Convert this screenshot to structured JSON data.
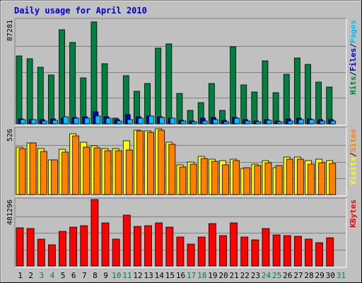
{
  "chart_data": {
    "type": "bar",
    "title": "Daily usage for April 2010",
    "categories": [
      "1",
      "2",
      "3",
      "4",
      "5",
      "6",
      "7",
      "8",
      "9",
      "10",
      "11",
      "12",
      "13",
      "14",
      "15",
      "16",
      "17",
      "18",
      "19",
      "20",
      "21",
      "22",
      "23",
      "24",
      "25",
      "26",
      "27",
      "28",
      "29",
      "30",
      "31"
    ],
    "weekend_days": [
      "3",
      "4",
      "10",
      "11",
      "17",
      "18",
      "24",
      "25",
      "31"
    ],
    "panels": [
      {
        "id": "hits",
        "max_label": "87281",
        "ymax": 87281,
        "legend": [
          {
            "text": "Hits",
            "color": "#008040"
          },
          {
            "text": "/",
            "color": "#000000"
          },
          {
            "text": "Files",
            "color": "#0000c0"
          },
          {
            "text": "/",
            "color": "#000000"
          },
          {
            "text": "Pages",
            "color": "#00c0ff"
          }
        ],
        "series": [
          {
            "name": "Hits",
            "color": "#008040",
            "values": [
              57200,
              54500,
              47500,
              40800,
              79000,
              68500,
              38800,
              85600,
              50700,
              4500,
              40300,
              27100,
              33800,
              63800,
              67200,
              25700,
              11000,
              18100,
              33800,
              11300,
              64900,
              32800,
              26700,
              52700,
              26300,
              41600,
              55000,
              49700,
              34800,
              30600,
              0
            ]
          },
          {
            "name": "Files",
            "color": "#0000c0",
            "values": [
              4300,
              3800,
              3400,
              4200,
              5000,
              5300,
              6000,
              10100,
              5700,
              3400,
              7600,
              6200,
              6800,
              6200,
              5000,
              3000,
              2600,
              4600,
              5300,
              3000,
              5300,
              3400,
              2600,
              3800,
              2600,
              4200,
              4600,
              4200,
              3400,
              3800,
              0
            ]
          },
          {
            "name": "Pages",
            "color": "#00c0ff",
            "values": [
              3400,
              3800,
              2600,
              3000,
              5700,
              4900,
              4600,
              6400,
              4600,
              2600,
              3800,
              4900,
              6800,
              5300,
              5000,
              2300,
              1900,
              2300,
              3400,
              1900,
              4600,
              2600,
              1900,
              3000,
              1900,
              2600,
              3400,
              3400,
              2600,
              2600,
              0
            ]
          }
        ]
      },
      {
        "id": "visits",
        "max_label": "526",
        "ymax": 526,
        "legend": [
          {
            "text": "Visits",
            "color": "#ffff00"
          },
          {
            "text": "/",
            "color": "#000000"
          },
          {
            "text": "Sites",
            "color": "#ff8000"
          }
        ],
        "series": [
          {
            "name": "Visits",
            "color": "#ffff00",
            "values": [
              377,
              415,
              369,
              275,
              362,
              484,
              419,
              392,
              368,
              370,
              429,
              512,
              508,
              526,
              419,
              237,
              261,
              304,
              284,
              269,
              283,
              208,
              242,
              270,
              216,
              300,
              300,
              272,
              280,
              270,
              0
            ]
          },
          {
            "name": "Sites",
            "color": "#ff8000",
            "values": [
              370,
              412,
              343,
              279,
              338,
              469,
              379,
              371,
              349,
              350,
              356,
              508,
              500,
              516,
              403,
              221,
              242,
              289,
              263,
              239,
              270,
              217,
              231,
              256,
              233,
              284,
              283,
              244,
              257,
              250,
              0
            ]
          }
        ]
      },
      {
        "id": "kbytes",
        "max_label": "481296",
        "ymax": 481296,
        "legend": [
          {
            "text": "KBytes",
            "color": "#ff0000"
          }
        ],
        "series": [
          {
            "name": "KBytes",
            "color": "#ff0000",
            "values": [
              278000,
              269000,
              196000,
              156000,
              252000,
              282000,
              294000,
              481000,
              312000,
              197000,
              370000,
              286000,
              290000,
              310000,
              282000,
              212000,
              161000,
              212000,
              305000,
              221000,
              314000,
              210000,
              191000,
              269000,
              225000,
              220000,
              217000,
              193000,
              167000,
              206000,
              0
            ]
          }
        ]
      }
    ]
  }
}
